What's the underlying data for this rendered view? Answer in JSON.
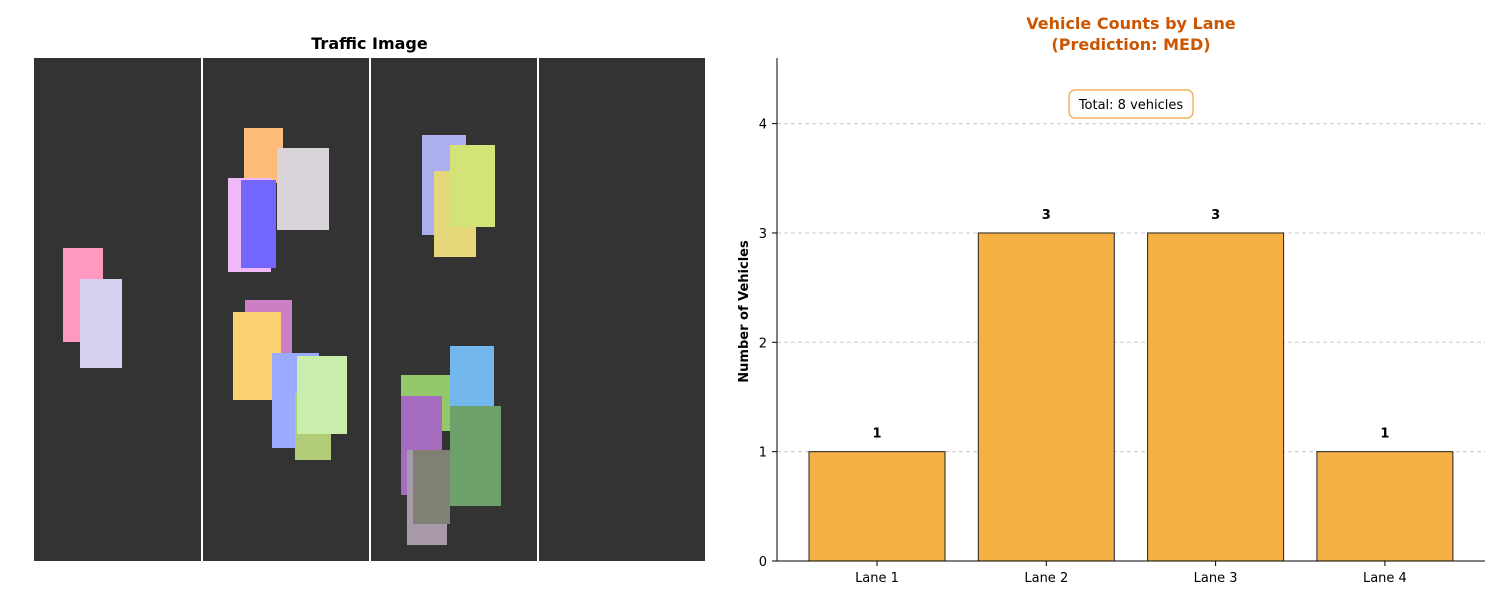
{
  "traffic_image": {
    "title": "Traffic Image",
    "background": "#333333",
    "lane_divider_color": "#ffffff",
    "vehicle_colors": [
      "#ff99c0",
      "#d4d1f0",
      "#ffbb78",
      "#f0b8f7",
      "#7366ff",
      "#d9d4d9",
      "#cc7fc4",
      "#f9d171",
      "#9aabff",
      "#b3cc7a",
      "#c9edaa",
      "#adaeed",
      "#e6d87a",
      "#d4e378",
      "#72b8ee",
      "#93c96a",
      "#a56cc0",
      "#6da06b",
      "#a89aa8",
      "#808075"
    ]
  },
  "chart_data": {
    "type": "bar",
    "title": "Vehicle Counts by Lane",
    "subtitle": "(Prediction: MED)",
    "title_color": "#cc5500",
    "categories": [
      "Lane 1",
      "Lane 2",
      "Lane 3",
      "Lane 4"
    ],
    "values": [
      1,
      3,
      3,
      1
    ],
    "data_labels": [
      "1",
      "3",
      "3",
      "1"
    ],
    "xlabel": "",
    "ylabel": "Number of Vehicles",
    "ylim": [
      0,
      4.6
    ],
    "yticks": [
      0,
      1,
      2,
      3,
      4
    ],
    "ytick_labels": [
      "0",
      "1",
      "2",
      "3",
      "4"
    ],
    "grid": "horizontal-dashed",
    "bar_color": "#f4b042",
    "bar_edge_color": "#222222",
    "annotation": {
      "text": "Total: 8 vehicles",
      "border_color": "#f4a03a"
    }
  }
}
